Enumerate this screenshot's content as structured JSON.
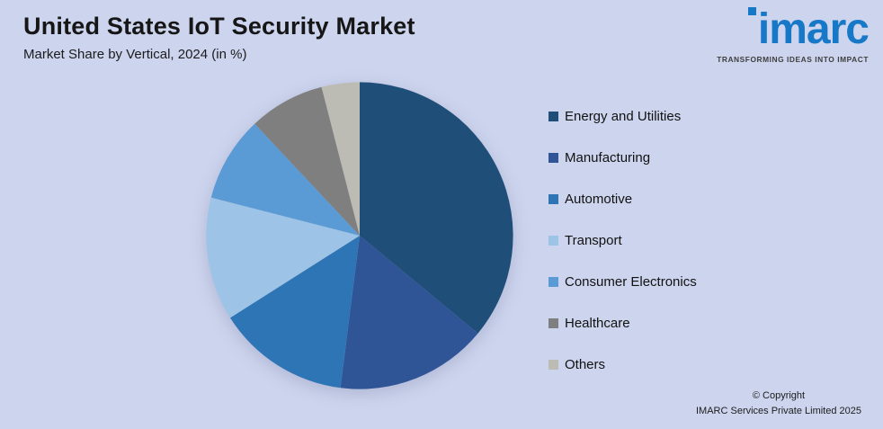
{
  "header": {
    "title": "United States IoT Security Market",
    "subtitle": "Market Share by Vertical, 2024 (in %)"
  },
  "logo": {
    "name": "imarc",
    "tagline": "TRANSFORMING IDEAS INTO IMPACT",
    "brand_color": "#1878c8"
  },
  "chart_data": {
    "type": "pie",
    "title": "United States IoT Security Market",
    "subtitle": "Market Share by Vertical, 2024 (in %)",
    "labels": [
      "Energy and Utilities",
      "Manufacturing",
      "Automotive",
      "Transport",
      "Consumer Electronics",
      "Healthcare",
      "Others"
    ],
    "values": [
      36,
      16,
      14,
      13,
      9,
      8,
      4
    ],
    "colors": [
      "#1f4e79",
      "#2f5597",
      "#2e75b6",
      "#9dc3e6",
      "#5b9bd5",
      "#7f7f7f",
      "#bdbcb4"
    ],
    "start_angle_deg": 0,
    "direction": "clockwise",
    "legend_position": "right",
    "data_labels_shown": false
  },
  "footer": {
    "copyright_line1": "© Copyright",
    "copyright_line2": "IMARC Services Private Limited 2025"
  },
  "background_color": "#cdd4ee"
}
